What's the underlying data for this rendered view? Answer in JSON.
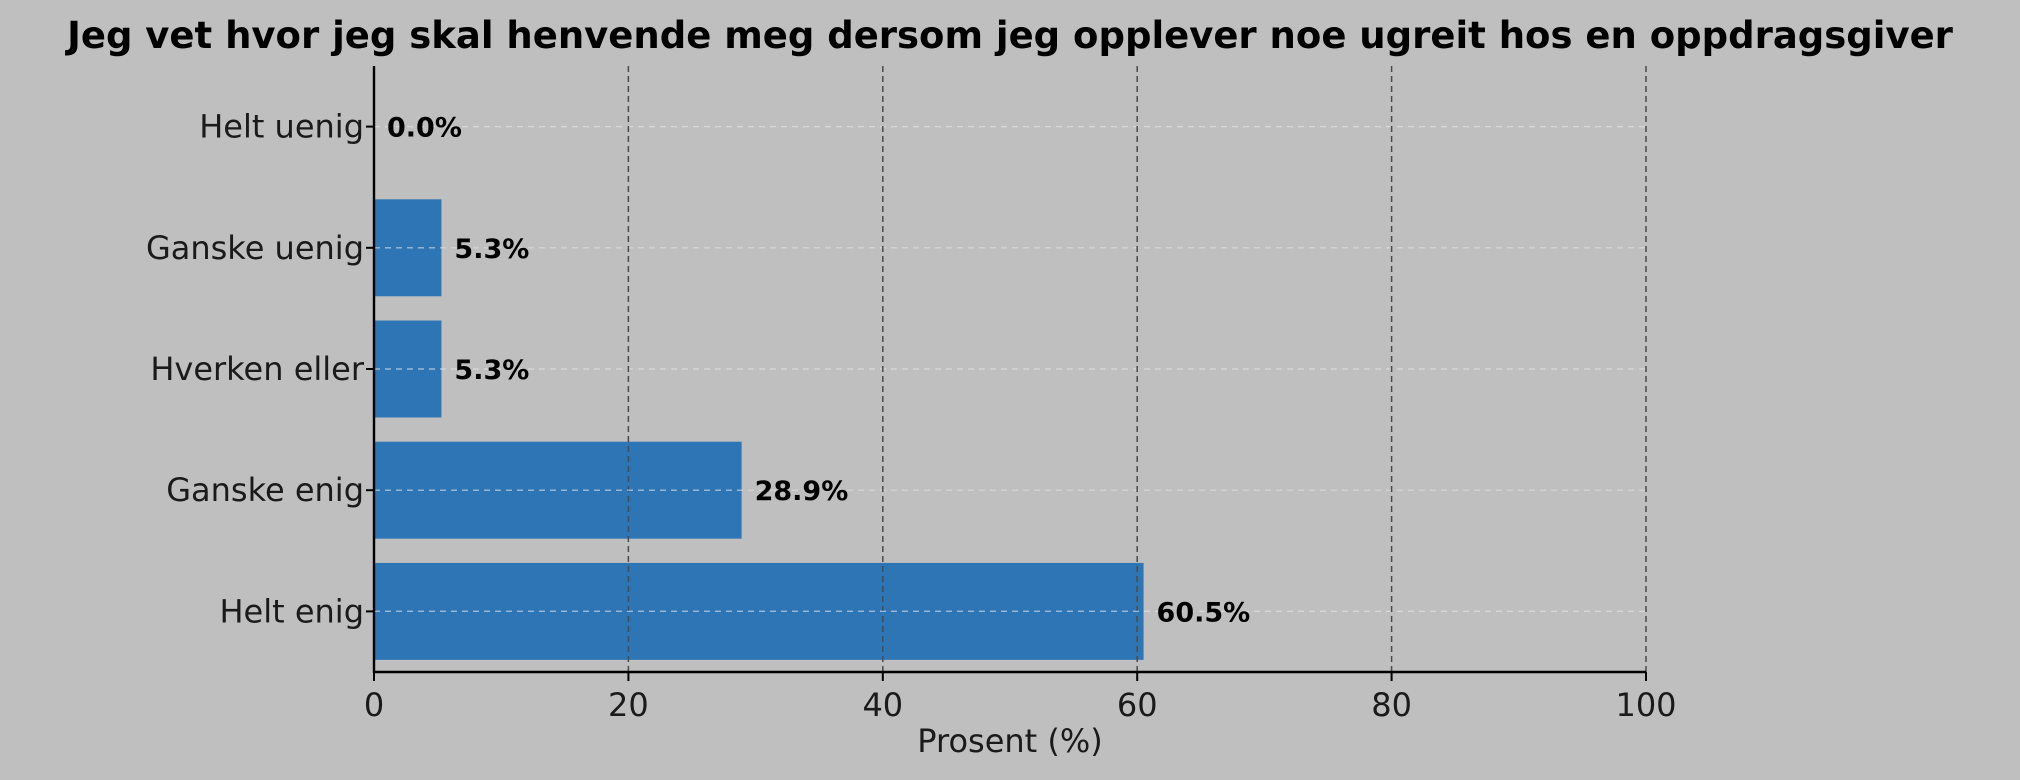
{
  "chart_data": {
    "type": "bar",
    "orientation": "horizontal",
    "title": "Jeg vet hvor jeg skal henvende meg dersom jeg opplever noe ugreit hos en oppdragsgiver",
    "xlabel": "Prosent (%)",
    "ylabel": "",
    "categories": [
      "Helt uenig",
      "Ganske uenig",
      "Hverken eller",
      "Ganske enig",
      "Helt enig"
    ],
    "values": [
      0.0,
      5.3,
      5.3,
      28.9,
      60.5
    ],
    "data_labels": [
      "0.0%",
      "5.3%",
      "5.3%",
      "28.9%",
      "60.5%"
    ],
    "xlim": [
      0,
      100
    ],
    "xticks": [
      "0",
      "20",
      "40",
      "60",
      "80",
      "100"
    ],
    "grid": true,
    "colors": {
      "bar": "#2e75b6",
      "background": "#bfbfbf",
      "axis": "#000000"
    }
  }
}
